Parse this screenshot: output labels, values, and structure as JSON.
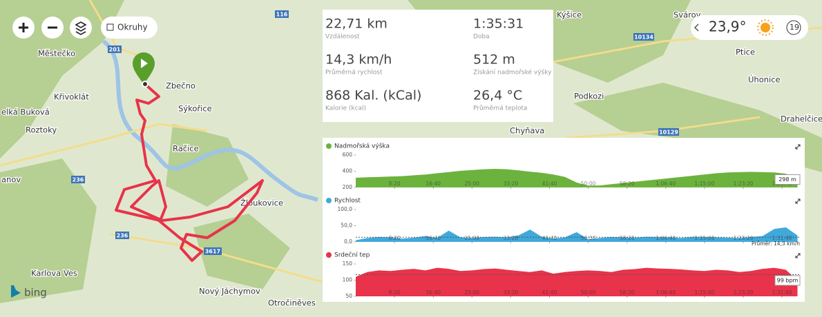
{
  "map": {
    "places": [
      "Městečko",
      "Křivoklát",
      "elká Buková",
      "Roztoky",
      "Zbečno",
      "Sýkořice",
      "Račice",
      "anov",
      "Žloukovice",
      "Karlova Ves",
      "Nový Jáchymov",
      "Otročiněves",
      "Kyšice",
      "Svárov",
      "Ptice",
      "Úhonice",
      "Podkozi",
      "Drahelčice",
      "Chyňava"
    ],
    "roads": [
      "116",
      "201",
      "236",
      "236",
      "3617",
      "10134",
      "10129"
    ],
    "provider": "bing",
    "controls": {
      "layers_checkbox": "Okruhy"
    }
  },
  "stats": [
    {
      "value": "22,71 km",
      "label": "Vzdálenost"
    },
    {
      "value": "1:35:31",
      "label": "Doba"
    },
    {
      "value": "14,3 km/h",
      "label": "Průměrná rychlost"
    },
    {
      "value": "512 m",
      "label": "Získání nadmořské výšky"
    },
    {
      "value": "868 Kal. (kCal)",
      "label": "Kalorie (kcal)"
    },
    {
      "value": "26,4 °C",
      "label": "Průměrná teplota"
    }
  ],
  "weather": {
    "temperature": "23,9°",
    "wind": "19"
  },
  "chart_data": [
    {
      "type": "area",
      "title": "Nadmořská výška",
      "color": "#6cb33e",
      "x": [
        0,
        150,
        300,
        450,
        600,
        750,
        900,
        1050,
        1200,
        1350,
        1500,
        1650,
        1800,
        1950,
        2100,
        2250,
        2400,
        2550,
        2700,
        2850,
        3000,
        3150,
        3300,
        3450,
        3600,
        3750,
        3900,
        4050,
        4200,
        4350,
        4500,
        4650,
        4800,
        4950,
        5100,
        5250,
        5400,
        5550,
        5700
      ],
      "values": [
        320,
        325,
        330,
        335,
        340,
        350,
        360,
        375,
        390,
        405,
        415,
        425,
        430,
        425,
        410,
        395,
        380,
        360,
        330,
        260,
        222,
        225,
        240,
        255,
        270,
        285,
        300,
        315,
        330,
        345,
        360,
        375,
        385,
        390,
        392,
        390,
        385,
        370,
        298
      ],
      "end_label": "298 m",
      "xlim": [
        0,
        5731
      ],
      "ylim": [
        200,
        600
      ],
      "yticks": [
        200,
        400,
        600
      ],
      "xticks": [
        {
          "value": 500,
          "label": "8:20"
        },
        {
          "value": 1000,
          "label": "16:40"
        },
        {
          "value": 1500,
          "label": "25:00"
        },
        {
          "value": 2000,
          "label": "33:20"
        },
        {
          "value": 2500,
          "label": "41:40"
        },
        {
          "value": 3000,
          "label": "50:00"
        },
        {
          "value": 3500,
          "label": "58:20"
        },
        {
          "value": 4000,
          "label": "1:06:40"
        },
        {
          "value": 4500,
          "label": "1:15:00"
        },
        {
          "value": 5000,
          "label": "1:23:20"
        },
        {
          "value": 5500,
          "label": "1:31:40"
        }
      ]
    },
    {
      "type": "area",
      "title": "Rychlost",
      "color": "#3fa9db",
      "x": [
        0,
        150,
        300,
        450,
        600,
        750,
        900,
        1050,
        1200,
        1350,
        1500,
        1650,
        1800,
        1950,
        2100,
        2250,
        2400,
        2550,
        2700,
        2850,
        3000,
        3150,
        3300,
        3450,
        3600,
        3750,
        3900,
        4050,
        4200,
        4350,
        4500,
        4650,
        4800,
        4950,
        5100,
        5250,
        5400,
        5550,
        5700
      ],
      "values": [
        5,
        12,
        15,
        14,
        10,
        13,
        18,
        12,
        35,
        14,
        12,
        15,
        16,
        14,
        20,
        38,
        16,
        10,
        14,
        30,
        8,
        12,
        15,
        14,
        13,
        16,
        15,
        14,
        12,
        16,
        15,
        14,
        13,
        12,
        15,
        18,
        40,
        45,
        20
      ],
      "avg": 14.3,
      "avg_label": "Průměr: 14,3 km/h",
      "xlim": [
        0,
        5731
      ],
      "ylim": [
        0,
        100
      ],
      "yticks": [
        {
          "value": 0,
          "label": "0,0"
        },
        {
          "value": 50,
          "label": "50,0"
        },
        {
          "value": 100,
          "label": "100,0"
        }
      ],
      "xticks": [
        {
          "value": 500,
          "label": "8:20"
        },
        {
          "value": 1000,
          "label": "16:40"
        },
        {
          "value": 1500,
          "label": "25:00"
        },
        {
          "value": 2000,
          "label": "33:20"
        },
        {
          "value": 2500,
          "label": "41:40"
        },
        {
          "value": 3000,
          "label": "50:00"
        },
        {
          "value": 3500,
          "label": "58:20"
        },
        {
          "value": 4000,
          "label": "1:06:40"
        },
        {
          "value": 4500,
          "label": "1:15:00"
        },
        {
          "value": 5000,
          "label": "1:23:20"
        },
        {
          "value": 5500,
          "label": "1:31:40"
        }
      ]
    },
    {
      "type": "area",
      "title": "Srdeční tep",
      "color": "#e8334a",
      "x": [
        0,
        150,
        300,
        450,
        600,
        750,
        900,
        1050,
        1200,
        1350,
        1500,
        1650,
        1800,
        1950,
        2100,
        2250,
        2400,
        2550,
        2700,
        2850,
        3000,
        3150,
        3300,
        3450,
        3600,
        3750,
        3900,
        4050,
        4200,
        4350,
        4500,
        4650,
        4800,
        4950,
        5100,
        5250,
        5400,
        5550,
        5700
      ],
      "values": [
        110,
        125,
        130,
        128,
        132,
        135,
        130,
        138,
        135,
        128,
        130,
        134,
        136,
        132,
        128,
        125,
        130,
        120,
        125,
        128,
        130,
        128,
        125,
        132,
        134,
        138,
        136,
        135,
        133,
        130,
        128,
        132,
        130,
        125,
        128,
        135,
        138,
        132,
        99
      ],
      "avg": 117,
      "end_label": "99 bpm",
      "xlim": [
        0,
        5731
      ],
      "ylim": [
        50,
        150
      ],
      "yticks": [
        50,
        100,
        150
      ],
      "xticks": [
        {
          "value": 500,
          "label": "8:20"
        },
        {
          "value": 1000,
          "label": "16:40"
        },
        {
          "value": 1500,
          "label": "25:00"
        },
        {
          "value": 2000,
          "label": "33:20"
        },
        {
          "value": 2500,
          "label": "41:40"
        },
        {
          "value": 3000,
          "label": "50:00"
        },
        {
          "value": 3500,
          "label": "58:20"
        },
        {
          "value": 4000,
          "label": "1:06:40"
        },
        {
          "value": 4500,
          "label": "1:15:00"
        },
        {
          "value": 5000,
          "label": "1:23:20"
        },
        {
          "value": 5500,
          "label": "1:31:40"
        }
      ]
    }
  ]
}
